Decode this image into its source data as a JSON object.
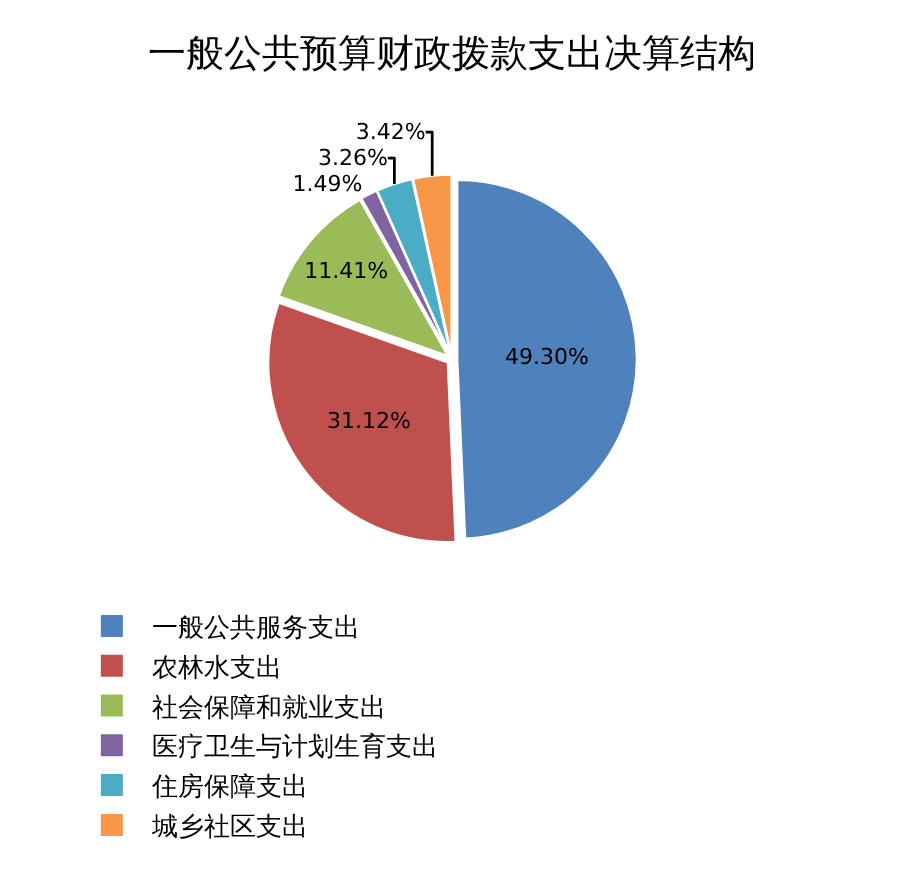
{
  "chart_data": {
    "type": "pie",
    "title": "一般公共预算财政拨款支出决算结构",
    "categories": [
      "一般公共服务支出",
      "农林水支出",
      "社会保障和就业支出",
      "医疗卫生与计划生育支出",
      "住房保障支出",
      "城乡社区支出"
    ],
    "values": [
      49.3,
      31.12,
      11.41,
      1.49,
      3.26,
      3.42
    ],
    "value_labels": [
      "49.30%",
      "31.12%",
      "11.41%",
      "1.49%",
      "3.26%",
      "3.42%"
    ],
    "colors": [
      "#4f81bd",
      "#c0504d",
      "#9bbb59",
      "#8064a2",
      "#4bacc6",
      "#f79646"
    ],
    "legend": "bottom"
  }
}
